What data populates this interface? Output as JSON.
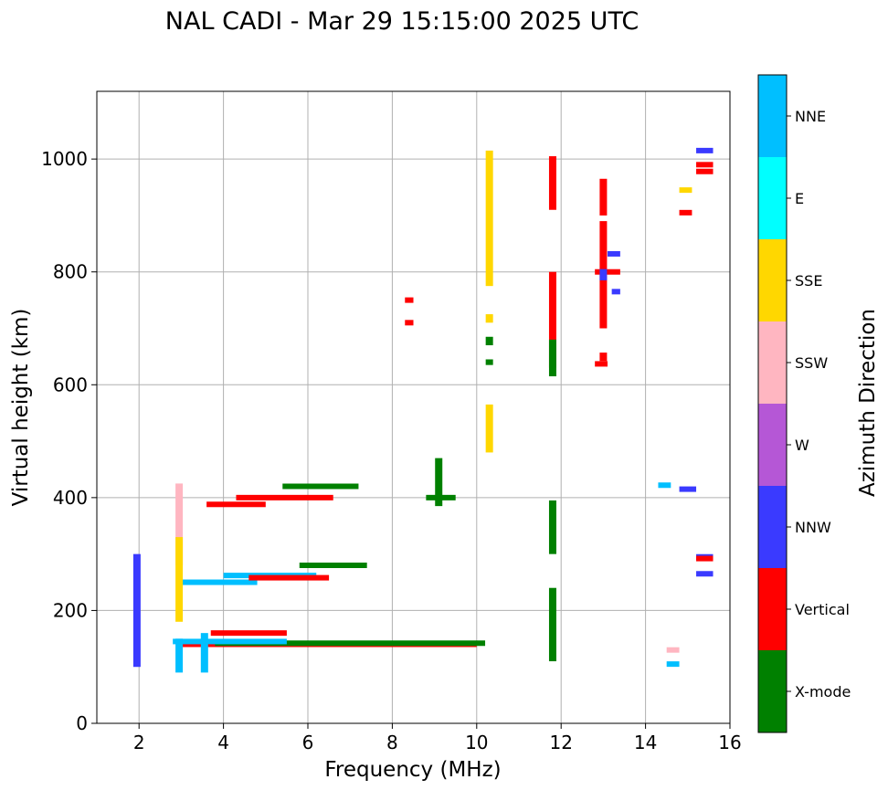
{
  "chart_data": {
    "type": "scatter",
    "title": "NAL CADI - Mar 29 15:15:00 2025 UTC",
    "xlabel": "Frequency (MHz)",
    "ylabel": "Virtual height (km)",
    "xlim": [
      1,
      16
    ],
    "ylim": [
      0,
      1120
    ],
    "xticks": [
      2,
      4,
      6,
      8,
      10,
      12,
      14,
      16
    ],
    "yticks": [
      0,
      200,
      400,
      600,
      800,
      1000
    ],
    "grid": true,
    "colorbar": {
      "label": "Azimuth Direction",
      "categories": [
        {
          "name": "X-mode",
          "color": "#008000"
        },
        {
          "name": "Vertical",
          "color": "#ff0000"
        },
        {
          "name": "NNW",
          "color": "#3a3aff"
        },
        {
          "name": "W",
          "color": "#b557d6"
        },
        {
          "name": "SSW",
          "color": "#ffb6c1"
        },
        {
          "name": "SSE",
          "color": "#ffd700"
        },
        {
          "name": "E",
          "color": "#00ffff"
        },
        {
          "name": "NNE",
          "color": "#00bfff"
        }
      ]
    },
    "segments": [
      {
        "cat": "Vertical",
        "x": [
          2.9,
          10.0
        ],
        "y": 140
      },
      {
        "cat": "X-mode",
        "x": [
          3.8,
          10.2
        ],
        "y": 142
      },
      {
        "cat": "NNE",
        "x": [
          2.8,
          5.5
        ],
        "y": 145
      },
      {
        "cat": "Vertical",
        "x": [
          3.7,
          5.5
        ],
        "y": 160
      },
      {
        "cat": "NNE",
        "x": [
          3.0,
          4.8
        ],
        "y": 250
      },
      {
        "cat": "NNE",
        "x": [
          4.0,
          6.2
        ],
        "y": 262
      },
      {
        "cat": "Vertical",
        "x": [
          4.6,
          6.5
        ],
        "y": 258
      },
      {
        "cat": "X-mode",
        "x": [
          5.8,
          7.4
        ],
        "y": 280
      },
      {
        "cat": "Vertical",
        "x": [
          3.6,
          5.0
        ],
        "y": 388
      },
      {
        "cat": "Vertical",
        "x": [
          4.3,
          6.6
        ],
        "y": 400
      },
      {
        "cat": "X-mode",
        "x": [
          5.4,
          7.2
        ],
        "y": 420
      },
      {
        "cat": "X-mode",
        "x": [
          8.8,
          9.5
        ],
        "y": 400
      },
      {
        "cat": "NNW",
        "x": [
          15.2,
          15.6
        ],
        "y": 1015
      },
      {
        "cat": "Vertical",
        "x": [
          15.2,
          15.6
        ],
        "y": 990
      },
      {
        "cat": "Vertical",
        "x": [
          15.2,
          15.6
        ],
        "y": 978
      },
      {
        "cat": "SSE",
        "x": [
          14.8,
          15.1
        ],
        "y": 945
      },
      {
        "cat": "Vertical",
        "x": [
          14.8,
          15.1
        ],
        "y": 905
      },
      {
        "cat": "NNW",
        "x": [
          15.2,
          15.6
        ],
        "y": 295
      },
      {
        "cat": "Vertical",
        "x": [
          15.2,
          15.6
        ],
        "y": 292
      },
      {
        "cat": "NNW",
        "x": [
          15.2,
          15.6
        ],
        "y": 265
      },
      {
        "cat": "NNE",
        "x": [
          14.3,
          14.6
        ],
        "y": 422
      },
      {
        "cat": "NNW",
        "x": [
          14.8,
          15.2
        ],
        "y": 415
      },
      {
        "cat": "SSW",
        "x": [
          14.5,
          14.8
        ],
        "y": 130
      },
      {
        "cat": "NNE",
        "x": [
          14.5,
          14.8
        ],
        "y": 105
      },
      {
        "cat": "Vertical",
        "x": [
          12.8,
          13.4
        ],
        "y": 800
      },
      {
        "cat": "NNW",
        "x": [
          13.1,
          13.4
        ],
        "y": 832
      },
      {
        "cat": "NNW",
        "x": [
          13.2,
          13.4
        ],
        "y": 765
      },
      {
        "cat": "Vertical",
        "x": [
          12.8,
          13.1
        ],
        "y": 637
      },
      {
        "cat": "Vertical",
        "x": [
          8.3,
          8.5
        ],
        "y": 750
      },
      {
        "cat": "Vertical",
        "x": [
          8.3,
          8.5
        ],
        "y": 710
      }
    ],
    "columns": [
      {
        "cat": "SSE",
        "x": 10.3,
        "y": [
          775,
          1015
        ]
      },
      {
        "cat": "SSE",
        "x": 10.3,
        "y": [
          480,
          565
        ]
      },
      {
        "cat": "SSE",
        "x": 10.3,
        "y": [
          710,
          725
        ]
      },
      {
        "cat": "X-mode",
        "x": 10.3,
        "y": [
          635,
          645
        ]
      },
      {
        "cat": "X-mode",
        "x": 10.3,
        "y": [
          670,
          685
        ]
      },
      {
        "cat": "Vertical",
        "x": 11.8,
        "y": [
          910,
          1005
        ]
      },
      {
        "cat": "Vertical",
        "x": 11.8,
        "y": [
          630,
          800
        ]
      },
      {
        "cat": "X-mode",
        "x": 11.8,
        "y": [
          615,
          680
        ]
      },
      {
        "cat": "X-mode",
        "x": 11.8,
        "y": [
          300,
          395
        ]
      },
      {
        "cat": "X-mode",
        "x": 11.8,
        "y": [
          110,
          240
        ]
      },
      {
        "cat": "Vertical",
        "x": 13.0,
        "y": [
          900,
          965
        ]
      },
      {
        "cat": "Vertical",
        "x": 13.0,
        "y": [
          700,
          890
        ]
      },
      {
        "cat": "NNW",
        "x": 13.0,
        "y": [
          785,
          805
        ]
      },
      {
        "cat": "Vertical",
        "x": 13.0,
        "y": [
          642,
          657
        ]
      },
      {
        "cat": "SSW",
        "x": 2.95,
        "y": [
          280,
          425
        ]
      },
      {
        "cat": "SSE",
        "x": 2.95,
        "y": [
          180,
          330
        ]
      },
      {
        "cat": "NNE",
        "x": 2.95,
        "y": [
          90,
          150
        ]
      },
      {
        "cat": "NNE",
        "x": 3.55,
        "y": [
          90,
          160
        ]
      },
      {
        "cat": "X-mode",
        "x": 9.1,
        "y": [
          385,
          470
        ]
      },
      {
        "cat": "NNW",
        "x": 1.95,
        "y": [
          100,
          300
        ]
      }
    ]
  }
}
